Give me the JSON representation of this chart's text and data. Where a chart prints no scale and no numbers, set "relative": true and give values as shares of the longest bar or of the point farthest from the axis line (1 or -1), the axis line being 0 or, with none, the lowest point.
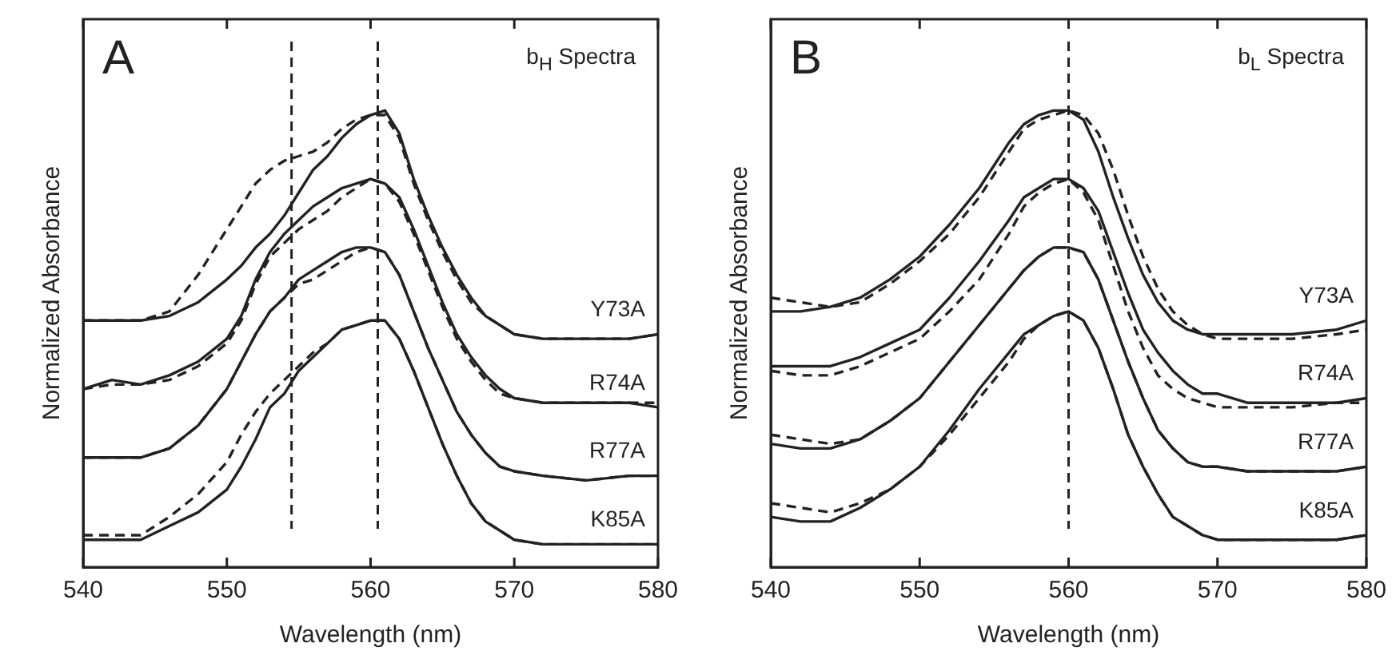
{
  "chart_data": [
    {
      "type": "line",
      "relative": true,
      "xlabel": "Wavelength (nm)",
      "ylabel": "Normalized Absorbance",
      "xlim": [
        540,
        580
      ],
      "xticks": [
        540,
        550,
        560,
        570,
        580
      ],
      "legend": false,
      "marker": "none",
      "annotations": [
        "A",
        "b$_{H}$ Spectra"
      ],
      "ref_lines": [
        {
          "axis": "x",
          "value": 554.5,
          "line_style": "dashed"
        },
        {
          "axis": "x",
          "value": 560.5,
          "line_style": "dashed"
        }
      ],
      "x": [
        540,
        542,
        544,
        546,
        548,
        550,
        551,
        552,
        553,
        554,
        555,
        556,
        557,
        558,
        559,
        560,
        561,
        562,
        563,
        564,
        565,
        566,
        567,
        568,
        569,
        570,
        572,
        575,
        578,
        580
      ],
      "series": [
        {
          "name": "Y73A",
          "color": "#222222",
          "line_style": "solid",
          "values": [
            0.54,
            0.54,
            0.54,
            0.55,
            0.58,
            0.63,
            0.66,
            0.7,
            0.73,
            0.77,
            0.82,
            0.87,
            0.9,
            0.94,
            0.97,
            0.99,
            1.0,
            0.95,
            0.85,
            0.77,
            0.7,
            0.64,
            0.59,
            0.55,
            0.53,
            0.51,
            0.5,
            0.5,
            0.5,
            0.51
          ]
        },
        {
          "color": "#222222",
          "line_style": "dashed",
          "values": [
            0.54,
            0.54,
            0.54,
            0.56,
            0.64,
            0.74,
            0.79,
            0.84,
            0.87,
            0.89,
            0.9,
            0.91,
            0.93,
            0.96,
            0.98,
            0.99,
            0.99,
            0.94,
            0.84,
            0.76,
            0.69,
            0.63,
            0.58,
            0.55,
            0.53,
            0.51,
            0.5,
            0.5,
            0.5,
            0.51
          ]
        },
        {
          "name": "R74A",
          "color": "#222222",
          "line_style": "solid",
          "values": [
            0.39,
            0.41,
            0.4,
            0.42,
            0.45,
            0.5,
            0.55,
            0.63,
            0.69,
            0.73,
            0.76,
            0.79,
            0.81,
            0.83,
            0.84,
            0.85,
            0.84,
            0.81,
            0.74,
            0.66,
            0.58,
            0.51,
            0.46,
            0.42,
            0.39,
            0.37,
            0.36,
            0.36,
            0.36,
            0.35
          ]
        },
        {
          "color": "#222222",
          "line_style": "dashed",
          "values": [
            0.39,
            0.4,
            0.4,
            0.41,
            0.44,
            0.49,
            0.54,
            0.62,
            0.68,
            0.71,
            0.74,
            0.76,
            0.78,
            0.81,
            0.83,
            0.85,
            0.84,
            0.8,
            0.73,
            0.65,
            0.57,
            0.5,
            0.45,
            0.41,
            0.38,
            0.37,
            0.36,
            0.36,
            0.36,
            0.36
          ]
        },
        {
          "name": "R77A",
          "color": "#222222",
          "line_style": "solid",
          "values": [
            0.24,
            0.24,
            0.24,
            0.26,
            0.31,
            0.39,
            0.45,
            0.51,
            0.56,
            0.59,
            0.63,
            0.65,
            0.67,
            0.69,
            0.7,
            0.7,
            0.69,
            0.64,
            0.56,
            0.48,
            0.41,
            0.34,
            0.29,
            0.25,
            0.22,
            0.21,
            0.2,
            0.19,
            0.2,
            0.2
          ]
        },
        {
          "color": "#222222",
          "line_style": "dashed",
          "values": [
            0.24,
            0.24,
            0.24,
            0.26,
            0.31,
            0.39,
            0.45,
            0.51,
            0.56,
            0.59,
            0.62,
            0.63,
            0.65,
            0.67,
            0.69,
            0.7,
            0.69,
            0.64,
            0.56,
            0.48,
            0.41,
            0.34,
            0.29,
            0.25,
            0.22,
            0.21,
            0.2,
            0.19,
            0.2,
            0.2
          ]
        },
        {
          "name": "K85A",
          "color": "#222222",
          "line_style": "solid",
          "values": [
            0.06,
            0.06,
            0.06,
            0.09,
            0.12,
            0.17,
            0.22,
            0.28,
            0.35,
            0.38,
            0.43,
            0.46,
            0.49,
            0.52,
            0.53,
            0.54,
            0.54,
            0.5,
            0.43,
            0.35,
            0.27,
            0.2,
            0.14,
            0.1,
            0.08,
            0.06,
            0.05,
            0.05,
            0.05,
            0.05
          ]
        },
        {
          "color": "#222222",
          "line_style": "dashed",
          "values": [
            0.07,
            0.07,
            0.07,
            0.11,
            0.16,
            0.23,
            0.29,
            0.34,
            0.38,
            0.41,
            0.44,
            0.47,
            0.49,
            0.52,
            0.53,
            0.54,
            0.54,
            0.5,
            0.43,
            0.35,
            0.27,
            0.2,
            0.14,
            0.1,
            0.08,
            0.06,
            0.05,
            0.05,
            0.05,
            0.05
          ]
        }
      ]
    },
    {
      "type": "line",
      "relative": true,
      "xlabel": "Wavelength (nm)",
      "ylabel": "Normalized Absorbance",
      "xlim": [
        540,
        580
      ],
      "xticks": [
        540,
        550,
        560,
        570,
        580
      ],
      "legend": false,
      "marker": "none",
      "annotations": [
        "B",
        "b$_{L}$ Spectra"
      ],
      "ref_lines": [
        {
          "axis": "x",
          "value": 560,
          "line_style": "dashed"
        }
      ],
      "x": [
        540,
        542,
        544,
        546,
        548,
        550,
        552,
        554,
        556,
        557,
        558,
        559,
        560,
        561,
        562,
        563,
        564,
        565,
        566,
        567,
        568,
        569,
        570,
        572,
        575,
        578,
        580
      ],
      "series": [
        {
          "name": "Y73A",
          "color": "#222222",
          "line_style": "solid",
          "values": [
            0.56,
            0.56,
            0.57,
            0.59,
            0.63,
            0.68,
            0.75,
            0.83,
            0.93,
            0.97,
            0.99,
            1.0,
            1.0,
            0.98,
            0.91,
            0.81,
            0.72,
            0.64,
            0.58,
            0.54,
            0.52,
            0.51,
            0.51,
            0.51,
            0.51,
            0.52,
            0.54
          ]
        },
        {
          "color": "#222222",
          "line_style": "dashed",
          "values": [
            0.59,
            0.58,
            0.57,
            0.58,
            0.62,
            0.67,
            0.73,
            0.81,
            0.91,
            0.96,
            0.98,
            0.99,
            1.0,
            0.99,
            0.95,
            0.87,
            0.77,
            0.68,
            0.61,
            0.56,
            0.53,
            0.51,
            0.5,
            0.5,
            0.5,
            0.51,
            0.52
          ]
        },
        {
          "name": "R74A",
          "color": "#222222",
          "line_style": "solid",
          "values": [
            0.44,
            0.44,
            0.44,
            0.46,
            0.49,
            0.52,
            0.59,
            0.67,
            0.76,
            0.81,
            0.83,
            0.85,
            0.85,
            0.83,
            0.78,
            0.69,
            0.6,
            0.52,
            0.47,
            0.43,
            0.4,
            0.38,
            0.38,
            0.36,
            0.36,
            0.36,
            0.37
          ]
        },
        {
          "color": "#222222",
          "line_style": "dashed",
          "values": [
            0.43,
            0.42,
            0.42,
            0.44,
            0.47,
            0.5,
            0.56,
            0.63,
            0.73,
            0.79,
            0.82,
            0.84,
            0.85,
            0.82,
            0.76,
            0.66,
            0.56,
            0.48,
            0.42,
            0.39,
            0.37,
            0.36,
            0.35,
            0.35,
            0.35,
            0.36,
            0.36
          ]
        },
        {
          "name": "R77A",
          "color": "#222222",
          "line_style": "solid",
          "values": [
            0.27,
            0.26,
            0.26,
            0.28,
            0.32,
            0.37,
            0.45,
            0.53,
            0.61,
            0.65,
            0.68,
            0.7,
            0.7,
            0.69,
            0.63,
            0.54,
            0.45,
            0.37,
            0.3,
            0.26,
            0.23,
            0.22,
            0.22,
            0.21,
            0.21,
            0.21,
            0.22
          ]
        },
        {
          "color": "#222222",
          "line_style": "dashed",
          "values": [
            0.29,
            0.28,
            0.27,
            0.28,
            0.32,
            0.37,
            0.45,
            0.53,
            0.61,
            0.65,
            0.68,
            0.7,
            0.7,
            0.69,
            0.63,
            0.54,
            0.45,
            0.37,
            0.3,
            0.26,
            0.23,
            0.22,
            0.22,
            0.21,
            0.21,
            0.21,
            0.22
          ]
        },
        {
          "name": "K85A",
          "color": "#222222",
          "line_style": "solid",
          "values": [
            0.11,
            0.1,
            0.1,
            0.13,
            0.17,
            0.22,
            0.3,
            0.39,
            0.47,
            0.51,
            0.53,
            0.55,
            0.56,
            0.54,
            0.48,
            0.39,
            0.29,
            0.22,
            0.16,
            0.11,
            0.09,
            0.07,
            0.06,
            0.06,
            0.06,
            0.06,
            0.07
          ]
        },
        {
          "color": "#222222",
          "line_style": "dashed",
          "values": [
            0.14,
            0.13,
            0.12,
            0.14,
            0.17,
            0.22,
            0.29,
            0.37,
            0.45,
            0.5,
            0.53,
            0.55,
            0.56,
            0.54,
            0.48,
            0.39,
            0.29,
            0.22,
            0.16,
            0.11,
            0.09,
            0.07,
            0.06,
            0.06,
            0.06,
            0.06,
            0.07
          ]
        }
      ]
    }
  ]
}
